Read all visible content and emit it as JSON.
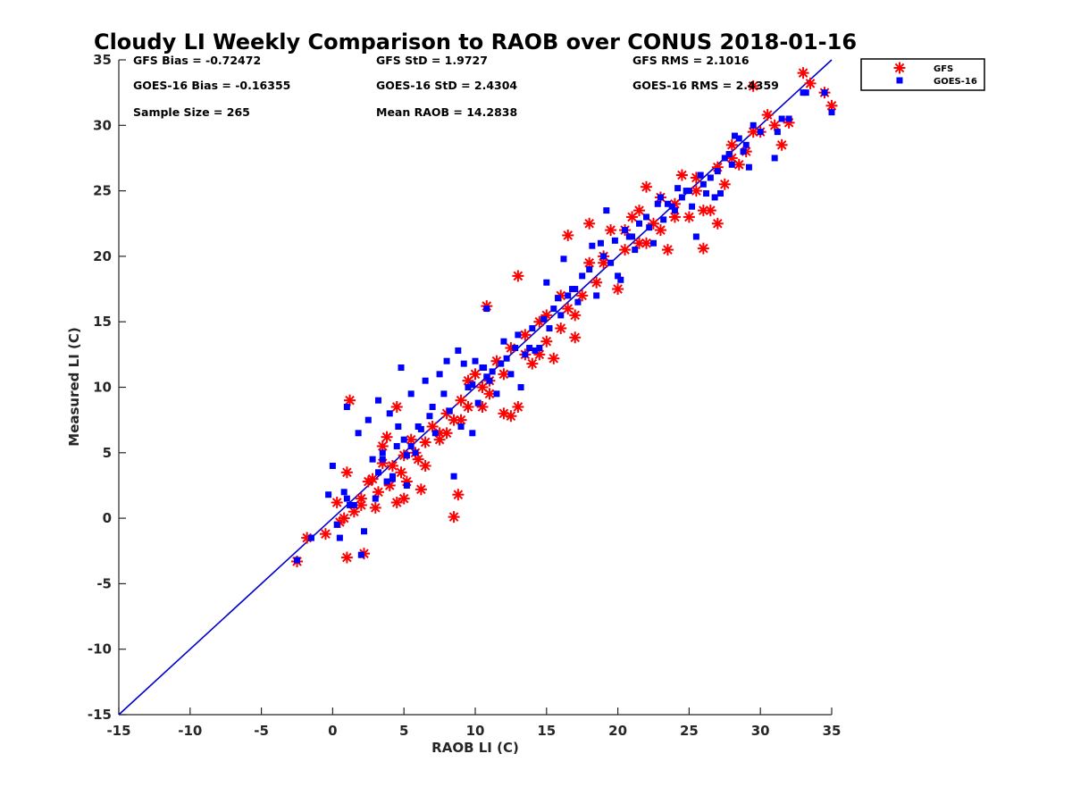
{
  "chart_data": {
    "type": "scatter",
    "title": "Cloudy LI Weekly Comparison to RAOB over CONUS 2018-01-16",
    "xlabel": "RAOB LI (C)",
    "ylabel": "Measured LI (C)",
    "xlim": [
      -15,
      35
    ],
    "ylim": [
      -15,
      35
    ],
    "xticks": [
      "-15",
      "-10",
      "-5",
      "0",
      "5",
      "10",
      "15",
      "20",
      "25",
      "30",
      "35"
    ],
    "yticks": [
      "-15",
      "-10",
      "-5",
      "0",
      "5",
      "10",
      "15",
      "20",
      "25",
      "30",
      "35"
    ],
    "legend_position": "outside-top-right",
    "stats": [
      "GFS Bias = -0.72472",
      "GFS StD = 1.9727",
      "GFS RMS = 2.1016",
      "GOES-16 Bias = -0.16355",
      "GOES-16 StD = 2.4304",
      "GOES-16 RMS = 2.4359",
      "Sample Size = 265",
      "Mean RAOB = 14.2838"
    ],
    "reference_line": {
      "from": [
        -15,
        -15
      ],
      "to": [
        35,
        35
      ],
      "color": "#0000cc"
    },
    "series": [
      {
        "name": "GFS",
        "marker": "asterisk",
        "color": "#ff0000",
        "x": [
          -2.5,
          -1.8,
          -0.5,
          0.3,
          1.0,
          1.2,
          2.0,
          2.2,
          1.5,
          0.8,
          2.8,
          3.2,
          3.5,
          3.0,
          4.0,
          4.2,
          4.8,
          5.0,
          5.2,
          5.5,
          6.0,
          6.2,
          4.5,
          3.8,
          5.8,
          6.5,
          7.0,
          7.5,
          8.0,
          8.5,
          9.0,
          8.8,
          9.5,
          10.0,
          10.5,
          11.0,
          11.5,
          10.8,
          12.0,
          12.5,
          13.0,
          13.5,
          14.0,
          14.5,
          15.0,
          16.0,
          16.5,
          17.0,
          15.5,
          17.5,
          18.0,
          18.5,
          19.0,
          19.5,
          20.0,
          20.5,
          21.0,
          21.5,
          22.0,
          22.5,
          23.0,
          23.5,
          24.0,
          24.5,
          25.0,
          25.5,
          26.0,
          26.5,
          27.0,
          27.5,
          28.0,
          28.5,
          29.0,
          29.5,
          30.0,
          30.5,
          31.5,
          32.0,
          33.0,
          33.5,
          35.0,
          34.5,
          22.0,
          19.0,
          13.0,
          8.5,
          9.0,
          1.0,
          10.5,
          16.5,
          23.0,
          26.0,
          29.5,
          6.5,
          2.5,
          5.0,
          11.0,
          12.5,
          14.5,
          16.0,
          18.0,
          20.5,
          24.0,
          27.0,
          31.0,
          0.5,
          3.5,
          7.5,
          9.5,
          13.5,
          15.0,
          17.0,
          21.5,
          25.5,
          28.0,
          2.0,
          4.5,
          8.0,
          12.0
        ],
        "y": [
          -3.3,
          -1.5,
          -1.2,
          1.2,
          -3.0,
          9.0,
          1.5,
          -2.7,
          0.5,
          0.0,
          3.0,
          2.0,
          5.5,
          0.8,
          2.5,
          4.0,
          3.5,
          1.5,
          2.8,
          6.0,
          4.5,
          2.2,
          8.5,
          6.2,
          5.0,
          5.8,
          7.0,
          6.5,
          8.0,
          7.5,
          9.0,
          1.8,
          10.5,
          11.0,
          8.5,
          9.5,
          12.0,
          16.2,
          8.0,
          13.0,
          18.5,
          12.5,
          11.8,
          15.0,
          13.5,
          14.5,
          16.0,
          15.5,
          12.2,
          17.0,
          19.5,
          18.0,
          20.0,
          22.0,
          17.5,
          20.5,
          23.0,
          21.0,
          25.3,
          22.5,
          24.5,
          20.5,
          24.0,
          26.2,
          23.0,
          25.0,
          20.6,
          23.5,
          26.8,
          25.5,
          27.5,
          27.0,
          28.0,
          33.0,
          29.5,
          30.8,
          28.5,
          30.2,
          34.0,
          33.2,
          31.5,
          32.5,
          21.0,
          19.5,
          8.5,
          0.1,
          7.5,
          3.5,
          10.0,
          21.6,
          22.0,
          23.5,
          29.5,
          4.0,
          2.8,
          4.8,
          10.5,
          7.8,
          12.5,
          17.0,
          22.5,
          22.0,
          23.0,
          22.5,
          30.0,
          -0.3,
          4.2,
          6.0,
          8.5,
          14.0,
          15.5,
          13.8,
          23.5,
          26.0,
          28.5,
          1.0,
          1.2,
          6.5,
          11.0
        ]
      },
      {
        "name": "GOES-16",
        "marker": "square",
        "color": "#0000ff",
        "x": [
          -2.5,
          -1.5,
          -0.3,
          0.0,
          0.5,
          0.8,
          1.0,
          1.2,
          1.8,
          2.0,
          2.5,
          3.0,
          3.2,
          3.5,
          4.0,
          4.2,
          4.5,
          4.8,
          5.0,
          5.2,
          5.5,
          5.8,
          6.0,
          6.5,
          7.0,
          7.2,
          7.5,
          8.0,
          8.5,
          9.0,
          9.5,
          10.0,
          10.2,
          10.5,
          10.8,
          11.0,
          11.5,
          12.0,
          12.5,
          13.0,
          13.5,
          14.0,
          14.5,
          15.0,
          15.5,
          16.0,
          16.5,
          17.0,
          17.5,
          18.0,
          18.5,
          19.0,
          19.5,
          20.0,
          20.5,
          21.0,
          21.5,
          22.0,
          22.5,
          23.0,
          23.5,
          24.0,
          24.5,
          25.0,
          25.5,
          26.0,
          26.5,
          27.0,
          27.5,
          28.0,
          28.5,
          29.0,
          29.5,
          30.0,
          31.0,
          32.0,
          33.0,
          34.5,
          35.0,
          1.0,
          2.2,
          3.8,
          4.6,
          6.2,
          7.8,
          9.8,
          10.6,
          12.8,
          14.2,
          15.2,
          16.8,
          18.8,
          20.8,
          22.8,
          24.8,
          26.8,
          28.8,
          0.3,
          2.8,
          5.2,
          8.8,
          9.2,
          11.2,
          13.2,
          17.2,
          19.2,
          21.2,
          23.2,
          25.2,
          27.2,
          29.2,
          31.2,
          33.2,
          3.5,
          5.5,
          9.8,
          11.8,
          14.8,
          16.2,
          18.2,
          20.2,
          22.2,
          24.2,
          26.2,
          28.2,
          1.5,
          3.2,
          6.8,
          8.2,
          12.2,
          15.8,
          19.8,
          23.8,
          27.8,
          31.5,
          4.2,
          10.8,
          13.8,
          25.8
        ],
        "y": [
          -3.2,
          -1.5,
          1.8,
          4.0,
          -1.5,
          2.0,
          8.5,
          1.0,
          6.5,
          -2.8,
          7.5,
          1.5,
          9.0,
          4.5,
          8.0,
          3.0,
          5.5,
          11.5,
          6.0,
          2.5,
          9.5,
          5.0,
          7.0,
          10.5,
          8.5,
          6.5,
          11.0,
          12.0,
          3.2,
          7.0,
          10.0,
          12.0,
          8.8,
          11.5,
          16.0,
          10.5,
          9.5,
          13.5,
          11.0,
          14.0,
          12.5,
          14.5,
          13.0,
          18.0,
          16.0,
          15.5,
          17.0,
          17.5,
          18.5,
          19.0,
          17.0,
          20.0,
          19.5,
          18.5,
          22.0,
          21.5,
          22.5,
          23.0,
          21.0,
          24.5,
          24.0,
          23.5,
          24.5,
          25.0,
          21.5,
          25.5,
          26.0,
          26.5,
          27.5,
          27.0,
          29.0,
          28.5,
          30.0,
          29.5,
          27.5,
          30.5,
          32.5,
          32.5,
          31.0,
          1.5,
          -1.0,
          2.8,
          7.0,
          6.8,
          9.5,
          6.5,
          11.5,
          13.0,
          12.8,
          14.5,
          17.5,
          21.0,
          21.5,
          24.0,
          25.0,
          24.5,
          28.0,
          -0.5,
          4.5,
          4.8,
          12.8,
          11.8,
          11.2,
          10.0,
          16.5,
          23.5,
          20.5,
          22.8,
          23.8,
          24.8,
          26.8,
          29.5,
          32.5,
          5.0,
          5.5,
          10.2,
          11.8,
          15.2,
          19.8,
          20.8,
          18.2,
          22.2,
          25.2,
          24.8,
          29.2,
          1.0,
          3.5,
          7.8,
          8.2,
          12.2,
          16.8,
          21.2,
          23.8,
          27.8,
          30.5,
          3.2,
          10.8,
          13.0,
          26.2
        ]
      }
    ]
  }
}
